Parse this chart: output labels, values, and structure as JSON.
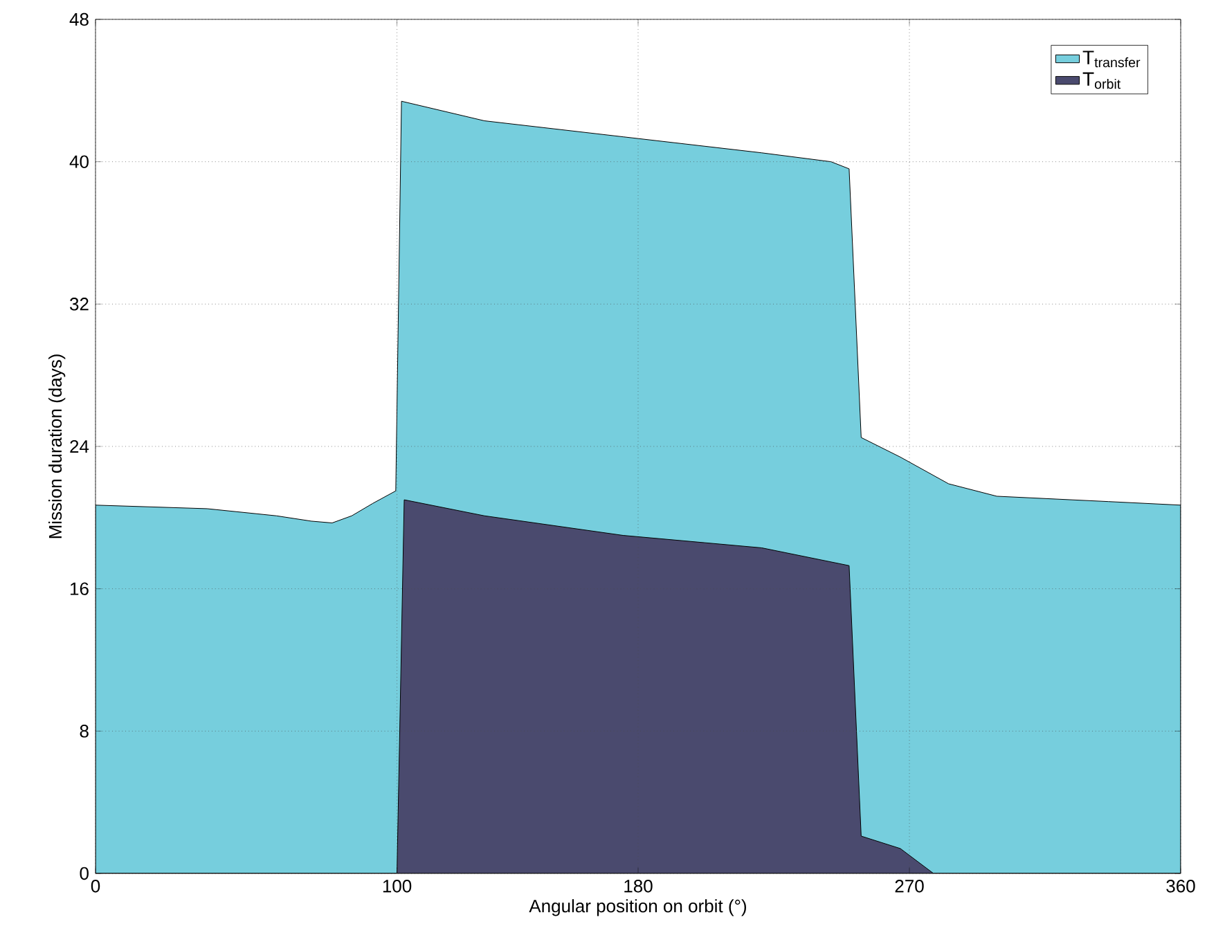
{
  "chart_data": {
    "type": "area",
    "xlabel": "Angular position on orbit (°)",
    "ylabel": "Mission duration (days)",
    "xlim": [
      0,
      360
    ],
    "ylim": [
      0,
      48
    ],
    "xticks": [
      0,
      100,
      180,
      270,
      360
    ],
    "yticks": [
      0,
      8,
      16,
      24,
      32,
      40,
      48
    ],
    "grid": true,
    "legend": "top right",
    "series": [
      {
        "name": "T$_{transfer}$",
        "color": "#76cedd",
        "x": [
          0,
          37,
          60,
          71.6,
          78.5,
          85,
          92,
          99.6,
          101.5,
          129,
          175,
          221,
          244,
          250,
          254,
          267,
          283,
          299,
          336,
          360
        ],
        "values": [
          20.7,
          20.5,
          20.1,
          19.8,
          19.7,
          20.1,
          20.8,
          21.5,
          43.4,
          42.3,
          41.4,
          40.5,
          40.0,
          39.6,
          24.5,
          23.4,
          21.9,
          21.2,
          20.9,
          20.7
        ]
      },
      {
        "name": "T$_{orbit}$",
        "color": "#4a4a6e",
        "x": [
          0,
          100,
          102.4,
          129,
          175,
          221,
          250,
          254,
          267,
          278,
          360
        ],
        "values": [
          0,
          0,
          21.0,
          20.1,
          19.0,
          18.3,
          17.3,
          2.1,
          1.4,
          0,
          0
        ]
      }
    ]
  }
}
